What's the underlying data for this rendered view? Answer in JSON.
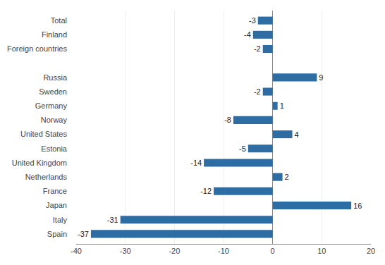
{
  "chart_data": {
    "type": "bar",
    "orientation": "horizontal",
    "categories": [
      "Total",
      "Finland",
      "Foreign countries",
      null,
      "Russia",
      "Sweden",
      "Germany",
      "Norway",
      "United States",
      "Estonia",
      "United Kingdom",
      "Netherlands",
      "France",
      "Japan",
      "Italy",
      "Spain"
    ],
    "values": [
      -3,
      -4,
      -2,
      null,
      9,
      -2,
      1,
      -8,
      4,
      -5,
      -14,
      2,
      -12,
      16,
      -31,
      -37
    ],
    "color": "#2e6da4",
    "xlim": [
      -40,
      20
    ],
    "xticks": [
      -40,
      -30,
      -20,
      -10,
      0,
      10,
      20
    ],
    "grid": true,
    "data_labels": true
  }
}
